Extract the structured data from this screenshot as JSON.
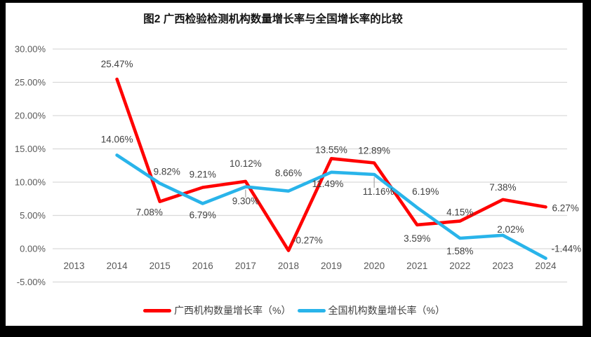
{
  "title": "图2 广西检验检测机构数量增长率与全国增长率的比较",
  "legend": [
    {
      "label": "广西机构数量增长率（%）",
      "color": "#FF0000"
    },
    {
      "label": "全国机构数量增长率（%）",
      "color": "#29B4EA"
    }
  ],
  "chart_data": {
    "type": "line",
    "title": "图2 广西检验检测机构数量增长率与全国增长率的比较",
    "categories": [
      "2013",
      "2014",
      "2015",
      "2016",
      "2017",
      "2018",
      "2019",
      "2020",
      "2021",
      "2022",
      "2023",
      "2024"
    ],
    "series": [
      {
        "name": "广西机构数量增长率（%）",
        "color": "#FF0000",
        "values": [
          null,
          25.47,
          7.08,
          9.21,
          10.12,
          -0.27,
          13.55,
          12.89,
          3.59,
          4.15,
          7.38,
          6.27
        ],
        "label_offsets": [
          null,
          {
            "dx": 0,
            "dy": -17
          },
          {
            "dx": -15,
            "dy": 20
          },
          {
            "dx": 0,
            "dy": -14
          },
          {
            "dx": 0,
            "dy": -21
          },
          {
            "dx": 6,
            "dy": -10,
            "anchor": "start"
          },
          {
            "dx": 0,
            "dy": -8
          },
          {
            "dx": 0,
            "dy": -13
          },
          {
            "dx": 0,
            "dy": 24
          },
          {
            "dx": 0,
            "dy": -8
          },
          {
            "dx": 0,
            "dy": -13
          },
          {
            "dx": 9,
            "dy": 6,
            "anchor": "start"
          }
        ]
      },
      {
        "name": "全国机构数量增长率（%）",
        "color": "#29B4EA",
        "values": [
          null,
          14.06,
          9.82,
          6.79,
          9.3,
          8.66,
          11.49,
          11.16,
          6.19,
          1.58,
          2.02,
          -1.44
        ],
        "label_offsets": [
          null,
          {
            "dx": 0,
            "dy": -18
          },
          {
            "dx": 10,
            "dy": -12
          },
          {
            "dx": 0,
            "dy": 21
          },
          {
            "dx": 0,
            "dy": 25,
            "leader": true
          },
          {
            "dx": 0,
            "dy": -21
          },
          {
            "dx": -5,
            "dy": 21
          },
          {
            "dx": 6,
            "dy": 29,
            "leader": true
          },
          {
            "dx": 12,
            "dy": -18
          },
          {
            "dx": 0,
            "dy": 23
          },
          {
            "dx": 11,
            "dy": -4
          },
          {
            "dx": 8,
            "dy": -9,
            "anchor": "start"
          }
        ]
      }
    ],
    "yticks": [
      30,
      25,
      20,
      15,
      10,
      5,
      0,
      -5
    ],
    "ylim": [
      -5,
      30
    ],
    "ytick_format": "0.00%",
    "data_labels": true,
    "grid": true,
    "legend_position": "bottom",
    "grid_color": "#D9D9D9",
    "tick_color": "#595959",
    "data_label_color": "#404040",
    "leader_color": "#A6A6A6"
  }
}
